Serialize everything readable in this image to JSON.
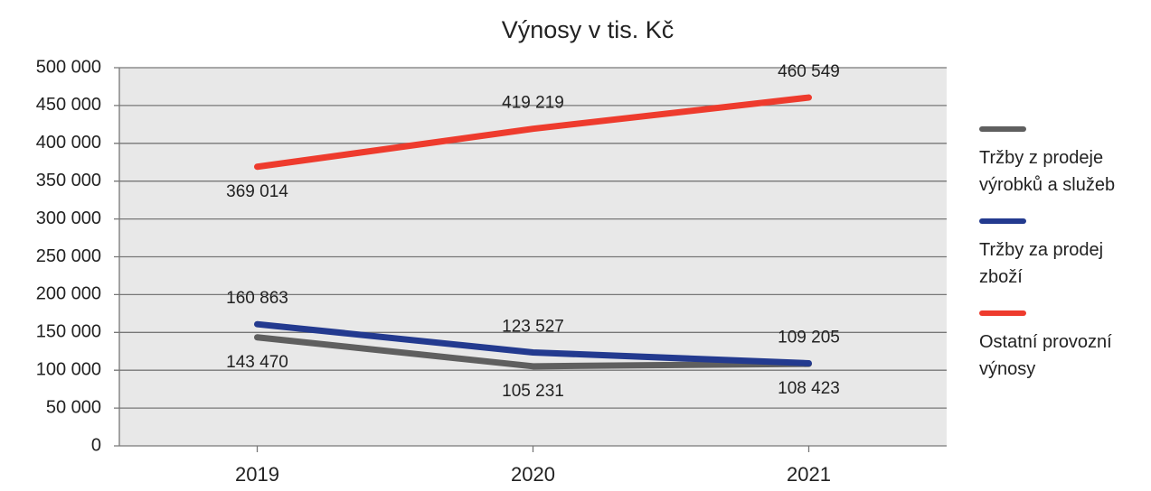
{
  "chart_data": {
    "type": "line",
    "title": "Výnosy v tis. Kč",
    "categories": [
      "2019",
      "2020",
      "2021"
    ],
    "series": [
      {
        "name": "Tržby z prodeje výrobků a služeb",
        "color": "#5f5f5f",
        "values": [
          143470,
          105231,
          108423
        ],
        "value_labels": [
          "143 470",
          "105 231",
          "108 423"
        ],
        "label_position": [
          "below",
          "below",
          "below"
        ]
      },
      {
        "name": "Tržby za prodej zboží",
        "color": "#233a8f",
        "values": [
          160863,
          123527,
          109205
        ],
        "value_labels": [
          "160 863",
          "123 527",
          "109 205"
        ],
        "label_position": [
          "above",
          "above",
          "above"
        ]
      },
      {
        "name": "Ostatní provozní výnosy",
        "color": "#ee3b2d",
        "values": [
          369014,
          419219,
          460549
        ],
        "value_labels": [
          "369 014",
          "419 219",
          "460 549"
        ],
        "label_position": [
          "below",
          "above",
          "above"
        ]
      }
    ],
    "ylim": [
      0,
      500000
    ],
    "yticks": [
      {
        "value": 0,
        "label": "0"
      },
      {
        "value": 50000,
        "label": "50 000"
      },
      {
        "value": 100000,
        "label": "100 000"
      },
      {
        "value": 150000,
        "label": "150 000"
      },
      {
        "value": 200000,
        "label": "200 000"
      },
      {
        "value": 250000,
        "label": "250 000"
      },
      {
        "value": 300000,
        "label": "300 000"
      },
      {
        "value": 350000,
        "label": "350 000"
      },
      {
        "value": 400000,
        "label": "400 000"
      },
      {
        "value": 450000,
        "label": "450 000"
      },
      {
        "value": 500000,
        "label": "500 000"
      }
    ],
    "grid": true,
    "legend": "right",
    "background": "#e8e8e8"
  }
}
